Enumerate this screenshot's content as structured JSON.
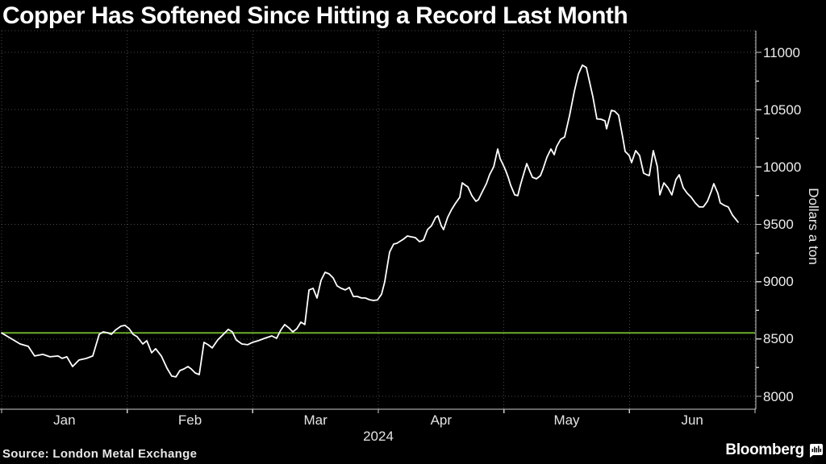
{
  "chart_data": {
    "type": "line",
    "title": "Copper Has Softened Since Hitting a Record Last Month",
    "source": "Source: London Metal Exchange",
    "brand": "Bloomberg",
    "ylabel": "Dollars a ton",
    "year_label": "2024",
    "x_tick_labels": [
      "Jan",
      "Feb",
      "Mar",
      "Apr",
      "May",
      "Jun"
    ],
    "y_ticks": [
      8000,
      8500,
      9000,
      9500,
      10000,
      10500,
      11000
    ],
    "y_minor_tick_step": 250,
    "ylim": [
      7890,
      11190
    ],
    "xlim_months": [
      0,
      6
    ],
    "grid": "dotted",
    "legend": "none",
    "reference_line_value": 8553,
    "colors": {
      "background": "#000000",
      "line": "#ffffff",
      "reference_line": "#6dad2c",
      "grid": "#4a4a4a",
      "axis": "#cccccc",
      "text": "#ededed"
    },
    "series": [
      {
        "name": "Copper price",
        "color": "#ffffff",
        "points": [
          [
            0.0,
            8553
          ],
          [
            0.051,
            8520
          ],
          [
            0.148,
            8457
          ],
          [
            0.212,
            8436
          ],
          [
            0.263,
            8352
          ],
          [
            0.328,
            8366
          ],
          [
            0.385,
            8345
          ],
          [
            0.45,
            8352
          ],
          [
            0.482,
            8331
          ],
          [
            0.52,
            8345
          ],
          [
            0.565,
            8260
          ],
          [
            0.617,
            8317
          ],
          [
            0.675,
            8331
          ],
          [
            0.726,
            8352
          ],
          [
            0.777,
            8541
          ],
          [
            0.809,
            8562
          ],
          [
            0.842,
            8555
          ],
          [
            0.874,
            8541
          ],
          [
            0.906,
            8577
          ],
          [
            0.951,
            8612
          ],
          [
            0.983,
            8619
          ],
          [
            1.015,
            8591
          ],
          [
            1.047,
            8541
          ],
          [
            1.079,
            8520
          ],
          [
            1.124,
            8457
          ],
          [
            1.156,
            8485
          ],
          [
            1.195,
            8380
          ],
          [
            1.227,
            8415
          ],
          [
            1.272,
            8352
          ],
          [
            1.317,
            8246
          ],
          [
            1.355,
            8176
          ],
          [
            1.388,
            8169
          ],
          [
            1.42,
            8225
          ],
          [
            1.452,
            8239
          ],
          [
            1.484,
            8260
          ],
          [
            1.51,
            8239
          ],
          [
            1.542,
            8204
          ],
          [
            1.574,
            8190
          ],
          [
            1.612,
            8471
          ],
          [
            1.644,
            8450
          ],
          [
            1.677,
            8422
          ],
          [
            1.721,
            8492
          ],
          [
            1.766,
            8541
          ],
          [
            1.805,
            8584
          ],
          [
            1.837,
            8562
          ],
          [
            1.869,
            8492
          ],
          [
            1.914,
            8457
          ],
          [
            1.959,
            8450
          ],
          [
            1.998,
            8471
          ],
          [
            2.043,
            8485
          ],
          [
            2.094,
            8506
          ],
          [
            2.152,
            8527
          ],
          [
            2.19,
            8506
          ],
          [
            2.223,
            8577
          ],
          [
            2.255,
            8626
          ],
          [
            2.287,
            8598
          ],
          [
            2.319,
            8562
          ],
          [
            2.351,
            8590
          ],
          [
            2.383,
            8647
          ],
          [
            2.415,
            8626
          ],
          [
            2.448,
            8928
          ],
          [
            2.48,
            8942
          ],
          [
            2.512,
            8858
          ],
          [
            2.544,
            9012
          ],
          [
            2.576,
            9082
          ],
          [
            2.608,
            9068
          ],
          [
            2.64,
            9033
          ],
          [
            2.672,
            8963
          ],
          [
            2.704,
            8942
          ],
          [
            2.737,
            8928
          ],
          [
            2.769,
            8949
          ],
          [
            2.801,
            8871
          ],
          [
            2.833,
            8871
          ],
          [
            2.865,
            8858
          ],
          [
            2.897,
            8858
          ],
          [
            2.929,
            8843
          ],
          [
            2.961,
            8836
          ],
          [
            2.993,
            8840
          ],
          [
            3.026,
            8890
          ],
          [
            3.051,
            8998
          ],
          [
            3.09,
            9258
          ],
          [
            3.122,
            9328
          ],
          [
            3.148,
            9335
          ],
          [
            3.199,
            9370
          ],
          [
            3.231,
            9398
          ],
          [
            3.263,
            9391
          ],
          [
            3.295,
            9384
          ],
          [
            3.328,
            9349
          ],
          [
            3.36,
            9363
          ],
          [
            3.392,
            9454
          ],
          [
            3.424,
            9489
          ],
          [
            3.456,
            9560
          ],
          [
            3.475,
            9574
          ],
          [
            3.501,
            9489
          ],
          [
            3.52,
            9454
          ],
          [
            3.552,
            9560
          ],
          [
            3.584,
            9630
          ],
          [
            3.617,
            9687
          ],
          [
            3.649,
            9736
          ],
          [
            3.668,
            9862
          ],
          [
            3.694,
            9841
          ],
          [
            3.713,
            9827
          ],
          [
            3.745,
            9750
          ],
          [
            3.777,
            9701
          ],
          [
            3.797,
            9715
          ],
          [
            3.829,
            9785
          ],
          [
            3.861,
            9855
          ],
          [
            3.886,
            9932
          ],
          [
            3.919,
            10002
          ],
          [
            3.951,
            10157
          ],
          [
            3.97,
            10073
          ],
          [
            3.996,
            10016
          ],
          [
            4.015,
            9967
          ],
          [
            4.034,
            9911
          ],
          [
            4.054,
            9841
          ],
          [
            4.086,
            9757
          ],
          [
            4.111,
            9750
          ],
          [
            4.131,
            9841
          ],
          [
            4.15,
            9911
          ],
          [
            4.182,
            10030
          ],
          [
            4.208,
            9960
          ],
          [
            4.227,
            9911
          ],
          [
            4.259,
            9897
          ],
          [
            4.291,
            9925
          ],
          [
            4.311,
            9981
          ],
          [
            4.343,
            10087
          ],
          [
            4.375,
            10157
          ],
          [
            4.401,
            10108
          ],
          [
            4.42,
            10178
          ],
          [
            4.452,
            10241
          ],
          [
            4.484,
            10262
          ],
          [
            4.523,
            10450
          ],
          [
            4.561,
            10660
          ],
          [
            4.593,
            10810
          ],
          [
            4.625,
            10888
          ],
          [
            4.657,
            10868
          ],
          [
            4.709,
            10613
          ],
          [
            4.741,
            10420
          ],
          [
            4.773,
            10417
          ],
          [
            4.805,
            10403
          ],
          [
            4.818,
            10333
          ],
          [
            4.856,
            10494
          ],
          [
            4.882,
            10487
          ],
          [
            4.914,
            10452
          ],
          [
            4.946,
            10262
          ],
          [
            4.966,
            10136
          ],
          [
            4.998,
            10101
          ],
          [
            5.017,
            10038
          ],
          [
            5.049,
            10143
          ],
          [
            5.081,
            10101
          ],
          [
            5.113,
            9946
          ],
          [
            5.139,
            9932
          ],
          [
            5.158,
            9925
          ],
          [
            5.19,
            10143
          ],
          [
            5.222,
            10002
          ],
          [
            5.242,
            9757
          ],
          [
            5.274,
            9862
          ],
          [
            5.306,
            9820
          ],
          [
            5.338,
            9757
          ],
          [
            5.37,
            9890
          ],
          [
            5.396,
            9932
          ],
          [
            5.428,
            9820
          ],
          [
            5.46,
            9771
          ],
          [
            5.492,
            9736
          ],
          [
            5.524,
            9687
          ],
          [
            5.556,
            9652
          ],
          [
            5.588,
            9652
          ],
          [
            5.621,
            9701
          ],
          [
            5.653,
            9792
          ],
          [
            5.672,
            9855
          ],
          [
            5.704,
            9771
          ],
          [
            5.723,
            9687
          ],
          [
            5.755,
            9666
          ],
          [
            5.787,
            9652
          ],
          [
            5.82,
            9581
          ],
          [
            5.865,
            9520
          ]
        ]
      }
    ]
  }
}
